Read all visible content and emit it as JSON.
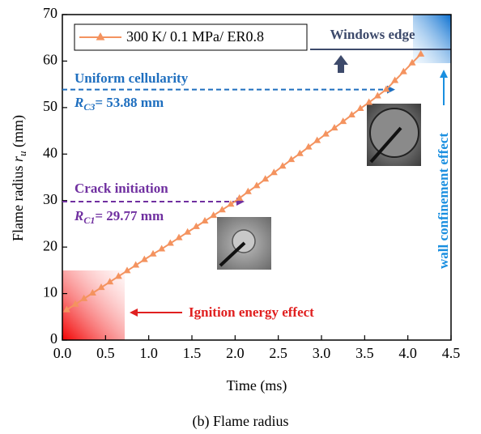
{
  "chart_data": {
    "type": "line",
    "x": [
      0.05,
      0.15,
      0.25,
      0.35,
      0.45,
      0.55,
      0.65,
      0.75,
      0.85,
      0.95,
      1.05,
      1.15,
      1.25,
      1.35,
      1.45,
      1.55,
      1.65,
      1.75,
      1.85,
      1.95,
      2.05,
      2.15,
      2.25,
      2.35,
      2.45,
      2.55,
      2.65,
      2.75,
      2.85,
      2.95,
      3.05,
      3.15,
      3.25,
      3.35,
      3.45,
      3.55,
      3.65,
      3.75,
      3.85,
      3.95,
      4.05,
      4.15
    ],
    "series": [
      {
        "name": "300 K/ 0.1 MPa/ ER0.8",
        "color": "#f4935f",
        "values": [
          6.5,
          7.7,
          8.9,
          10.1,
          11.3,
          12.5,
          13.7,
          14.9,
          16.1,
          17.3,
          18.5,
          19.6,
          20.8,
          22.0,
          23.2,
          24.4,
          25.6,
          26.8,
          28.0,
          29.2,
          30.5,
          31.9,
          33.2,
          34.6,
          36.0,
          37.4,
          38.8,
          40.1,
          41.5,
          42.9,
          44.3,
          45.6,
          47.0,
          48.4,
          49.8,
          51.1,
          52.5,
          53.9,
          55.8,
          57.7,
          59.6,
          61.5
        ]
      }
    ],
    "xlabel": "Time (ms)",
    "ylabel": [
      "Flame radius ",
      "r",
      "u",
      " (mm)"
    ],
    "xlim": [
      0,
      4.5
    ],
    "xticks": [
      {
        "value": 0,
        "label": "0.0"
      },
      {
        "value": 0.5,
        "label": "0.5"
      },
      {
        "value": 1,
        "label": "1.0"
      },
      {
        "value": 1.5,
        "label": "1.5"
      },
      {
        "value": 2,
        "label": "2.0"
      },
      {
        "value": 2.5,
        "label": "2.5"
      },
      {
        "value": 3,
        "label": "3.0"
      },
      {
        "value": 3.5,
        "label": "3.5"
      },
      {
        "value": 4,
        "label": "4.0"
      },
      {
        "value": 4.5,
        "label": "4.5"
      }
    ],
    "ylim": [
      0,
      70
    ],
    "yticks": [
      0,
      10,
      20,
      30,
      40,
      50,
      60,
      70
    ],
    "legend": "top-left",
    "annotations": {
      "windows_edge": "Windows edge",
      "uniform": "Uniform  cellularity",
      "rc3": {
        "prefix": "R",
        "sub": "C3",
        "text": "= 53.88 mm",
        "value": 53.88
      },
      "crack": "Crack initiation",
      "rc1": {
        "prefix": "R",
        "sub": "C1",
        "text": "= 29.77 mm",
        "value": 29.77
      },
      "ignition": "Ignition energy effect",
      "wall": "wall confinement effect"
    },
    "caption": "(b) Flame radius"
  }
}
